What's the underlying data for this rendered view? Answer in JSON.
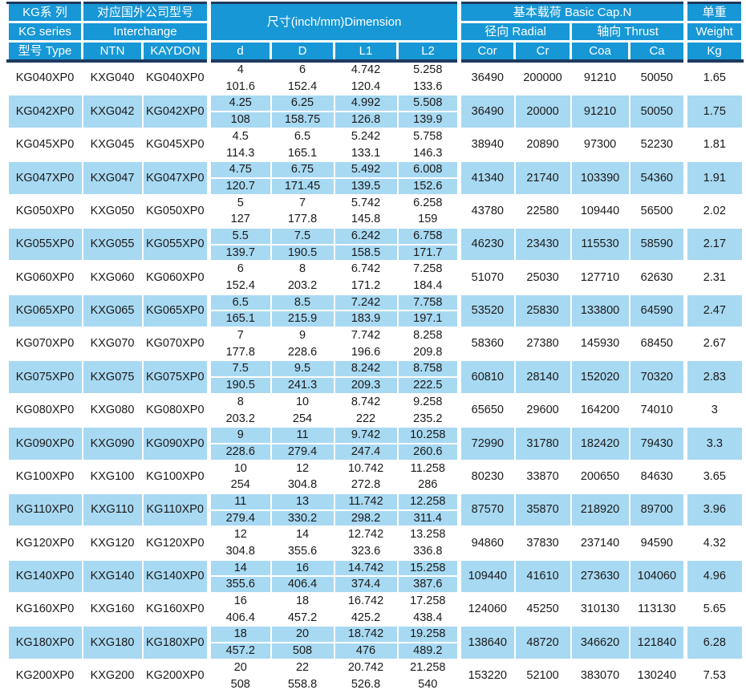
{
  "colors": {
    "header_bg": "#1797d6",
    "row_alt_bg": "#a8d9f2",
    "divider_line": "#1e3a5f",
    "header_text": "#ffffff",
    "body_text": "#1a1a1a"
  },
  "header": {
    "series_cn": "KG系 列",
    "series_en": "KG series",
    "type": "型号 Type",
    "interchange_cn": "对应国外公司型号",
    "interchange_en": "Interchange",
    "ntn": "NTN",
    "kaydon": "KAYDON",
    "dimension": "尺寸(inch/mm)Dimension",
    "dim_cols": [
      "d",
      "D",
      "L1",
      "L2"
    ],
    "capacity": "基本载荷 Basic Cap.N",
    "radial": "径向 Radial",
    "thrust": "轴向 Thrust",
    "cap_cols": [
      "Cor",
      "Cr",
      "Coa",
      "Ca"
    ],
    "weight_cn": "单重",
    "weight_en": "Weight",
    "weight_unit": "Kg"
  },
  "rows": [
    {
      "type": "KG040XP0",
      "ntn": "KXG040",
      "kaydon": "KG040XP0",
      "d": [
        "4",
        "101.6"
      ],
      "D": [
        "6",
        "152.4"
      ],
      "L1": [
        "4.742",
        "120.4"
      ],
      "L2": [
        "5.258",
        "133.6"
      ],
      "cor": "36490",
      "cr": "200000",
      "coa": "91210",
      "ca": "50050",
      "kg": "1.65"
    },
    {
      "type": "KG042XP0",
      "ntn": "KXG042",
      "kaydon": "KG042XP0",
      "d": [
        "4.25",
        "108"
      ],
      "D": [
        "6.25",
        "158.75"
      ],
      "L1": [
        "4.992",
        "126.8"
      ],
      "L2": [
        "5.508",
        "139.9"
      ],
      "cor": "36490",
      "cr": "20000",
      "coa": "91210",
      "ca": "50050",
      "kg": "1.75"
    },
    {
      "type": "KG045XP0",
      "ntn": "KXG045",
      "kaydon": "KG045XP0",
      "d": [
        "4.5",
        "114.3"
      ],
      "D": [
        "6.5",
        "165.1"
      ],
      "L1": [
        "5.242",
        "133.1"
      ],
      "L2": [
        "5.758",
        "146.3"
      ],
      "cor": "38940",
      "cr": "20890",
      "coa": "97300",
      "ca": "52230",
      "kg": "1.81"
    },
    {
      "type": "KG047XP0",
      "ntn": "KXG047",
      "kaydon": "KG047XP0",
      "d": [
        "4.75",
        "120.7"
      ],
      "D": [
        "6.75",
        "171.45"
      ],
      "L1": [
        "5.492",
        "139.5"
      ],
      "L2": [
        "6.008",
        "152.6"
      ],
      "cor": "41340",
      "cr": "21740",
      "coa": "103390",
      "ca": "54360",
      "kg": "1.91"
    },
    {
      "type": "KG050XP0",
      "ntn": "KXG050",
      "kaydon": "KG050XP0",
      "d": [
        "5",
        "127"
      ],
      "D": [
        "7",
        "177.8"
      ],
      "L1": [
        "5.742",
        "145.8"
      ],
      "L2": [
        "6.258",
        "159"
      ],
      "cor": "43780",
      "cr": "22580",
      "coa": "109440",
      "ca": "56500",
      "kg": "2.02"
    },
    {
      "type": "KG055XP0",
      "ntn": "KXG055",
      "kaydon": "KG055XP0",
      "d": [
        "5.5",
        "139.7"
      ],
      "D": [
        "7.5",
        "190.5"
      ],
      "L1": [
        "6.242",
        "158.5"
      ],
      "L2": [
        "6.758",
        "171.7"
      ],
      "cor": "46230",
      "cr": "23430",
      "coa": "115530",
      "ca": "58590",
      "kg": "2.17"
    },
    {
      "type": "KG060XP0",
      "ntn": "KXG060",
      "kaydon": "KG060XP0",
      "d": [
        "6",
        "152.4"
      ],
      "D": [
        "8",
        "203.2"
      ],
      "L1": [
        "6.742",
        "171.2"
      ],
      "L2": [
        "7.258",
        "184.4"
      ],
      "cor": "51070",
      "cr": "25030",
      "coa": "127710",
      "ca": "62630",
      "kg": "2.31"
    },
    {
      "type": "KG065XP0",
      "ntn": "KXG065",
      "kaydon": "KG065XP0",
      "d": [
        "6.5",
        "165.1"
      ],
      "D": [
        "8.5",
        "215.9"
      ],
      "L1": [
        "7.242",
        "183.9"
      ],
      "L2": [
        "7.758",
        "197.1"
      ],
      "cor": "53520",
      "cr": "25830",
      "coa": "133800",
      "ca": "64590",
      "kg": "2.47"
    },
    {
      "type": "KG070XP0",
      "ntn": "KXG070",
      "kaydon": "KG070XP0",
      "d": [
        "7",
        "177.8"
      ],
      "D": [
        "9",
        "228.6"
      ],
      "L1": [
        "7.742",
        "196.6"
      ],
      "L2": [
        "8.258",
        "209.8"
      ],
      "cor": "58360",
      "cr": "27380",
      "coa": "145930",
      "ca": "68450",
      "kg": "2.67"
    },
    {
      "type": "KG075XP0",
      "ntn": "KXG075",
      "kaydon": "KG075XP0",
      "d": [
        "7.5",
        "190.5"
      ],
      "D": [
        "9.5",
        "241.3"
      ],
      "L1": [
        "8.242",
        "209.3"
      ],
      "L2": [
        "8.758",
        "222.5"
      ],
      "cor": "60810",
      "cr": "28140",
      "coa": "152020",
      "ca": "70320",
      "kg": "2.83"
    },
    {
      "type": "KG080XP0",
      "ntn": "KXG080",
      "kaydon": "KG080XP0",
      "d": [
        "8",
        "203.2"
      ],
      "D": [
        "10",
        "254"
      ],
      "L1": [
        "8.742",
        "222"
      ],
      "L2": [
        "9.258",
        "235.2"
      ],
      "cor": "65650",
      "cr": "29600",
      "coa": "164200",
      "ca": "74010",
      "kg": "3"
    },
    {
      "type": "KG090XP0",
      "ntn": "KXG090",
      "kaydon": "KG090XP0",
      "d": [
        "9",
        "228.6"
      ],
      "D": [
        "11",
        "279.4"
      ],
      "L1": [
        "9.742",
        "247.4"
      ],
      "L2": [
        "10.258",
        "260.6"
      ],
      "cor": "72990",
      "cr": "31780",
      "coa": "182420",
      "ca": "79430",
      "kg": "3.3"
    },
    {
      "type": "KG100XP0",
      "ntn": "KXG100",
      "kaydon": "KG100XP0",
      "d": [
        "10",
        "254"
      ],
      "D": [
        "12",
        "304.8"
      ],
      "L1": [
        "10.742",
        "272.8"
      ],
      "L2": [
        "11.258",
        "286"
      ],
      "cor": "80230",
      "cr": "33870",
      "coa": "200650",
      "ca": "84630",
      "kg": "3.65"
    },
    {
      "type": "KG110XP0",
      "ntn": "KXG110",
      "kaydon": "KG110XP0",
      "d": [
        "11",
        "279.4"
      ],
      "D": [
        "13",
        "330.2"
      ],
      "L1": [
        "11.742",
        "298.2"
      ],
      "L2": [
        "12.258",
        "311.4"
      ],
      "cor": "87570",
      "cr": "35870",
      "coa": "218920",
      "ca": "89700",
      "kg": "3.96"
    },
    {
      "type": "KG120XP0",
      "ntn": "KXG120",
      "kaydon": "KG120XP0",
      "d": [
        "12",
        "304.8"
      ],
      "D": [
        "14",
        "355.6"
      ],
      "L1": [
        "12.742",
        "323.6"
      ],
      "L2": [
        "13.258",
        "336.8"
      ],
      "cor": "94860",
      "cr": "37830",
      "coa": "237140",
      "ca": "94590",
      "kg": "4.32"
    },
    {
      "type": "KG140XP0",
      "ntn": "KXG140",
      "kaydon": "KG140XP0",
      "d": [
        "14",
        "355.6"
      ],
      "D": [
        "16",
        "406.4"
      ],
      "L1": [
        "14.742",
        "374.4"
      ],
      "L2": [
        "15.258",
        "387.6"
      ],
      "cor": "109440",
      "cr": "41610",
      "coa": "273630",
      "ca": "104060",
      "kg": "4.96"
    },
    {
      "type": "KG160XP0",
      "ntn": "KXG160",
      "kaydon": "KG160XP0",
      "d": [
        "16",
        "406.4"
      ],
      "D": [
        "18",
        "457.2"
      ],
      "L1": [
        "16.742",
        "425.2"
      ],
      "L2": [
        "17.258",
        "438.4"
      ],
      "cor": "124060",
      "cr": "45250",
      "coa": "310130",
      "ca": "113130",
      "kg": "5.65"
    },
    {
      "type": "KG180XP0",
      "ntn": "KXG180",
      "kaydon": "KG180XP0",
      "d": [
        "18",
        "457.2"
      ],
      "D": [
        "20",
        "508"
      ],
      "L1": [
        "18.742",
        "476"
      ],
      "L2": [
        "19.258",
        "489.2"
      ],
      "cor": "138640",
      "cr": "48720",
      "coa": "346620",
      "ca": "121840",
      "kg": "6.28"
    },
    {
      "type": "KG200XP0",
      "ntn": "KXG200",
      "kaydon": "KG200XP0",
      "d": [
        "20",
        "508"
      ],
      "D": [
        "22",
        "558.8"
      ],
      "L1": [
        "20.742",
        "526.8"
      ],
      "L2": [
        "21.258",
        "540"
      ],
      "cor": "153220",
      "cr": "52100",
      "coa": "383070",
      "ca": "130240",
      "kg": "7.53"
    }
  ]
}
